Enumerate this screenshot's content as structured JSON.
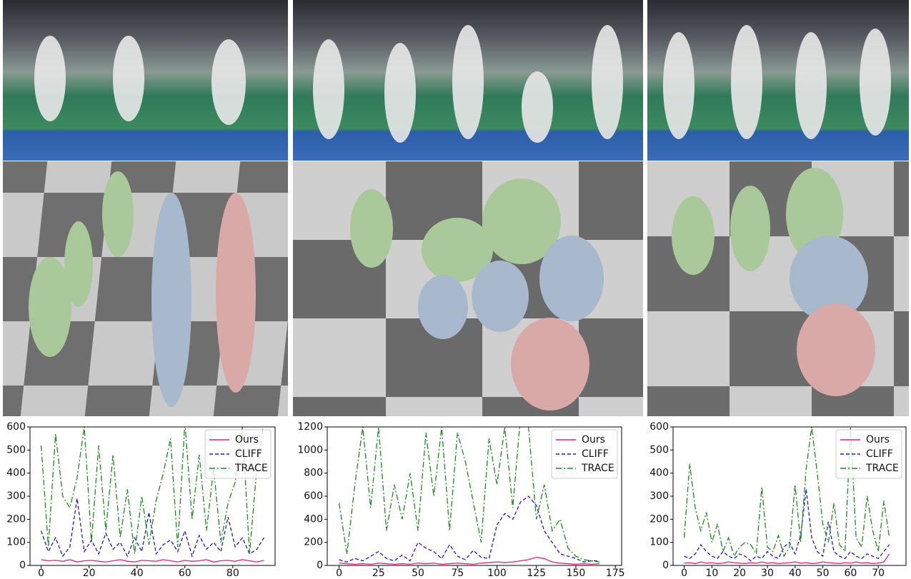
{
  "chart_data": [
    {
      "type": "line",
      "legend": "upper right",
      "x": [
        0,
        3,
        6,
        9,
        12,
        15,
        18,
        21,
        24,
        27,
        30,
        33,
        36,
        39,
        42,
        45,
        48,
        51,
        54,
        57,
        60,
        63,
        66,
        69,
        72,
        75,
        78,
        81,
        84,
        87,
        90,
        93
      ],
      "xlim": [
        -4.65,
        97.65
      ],
      "xticks": [
        0,
        20,
        40,
        60,
        80
      ],
      "ylim": [
        0,
        600
      ],
      "yticks": [
        0,
        100,
        200,
        300,
        400,
        500,
        600
      ],
      "series": [
        {
          "name": "Ours",
          "color": "#e0217b",
          "linestyle": "solid",
          "values": [
            25,
            20,
            22,
            18,
            25,
            15,
            20,
            22,
            18,
            15,
            20,
            25,
            18,
            15,
            22,
            20,
            18,
            25,
            20,
            15,
            22,
            18,
            20,
            25,
            15,
            20,
            22,
            18,
            25,
            20,
            15,
            22
          ]
        },
        {
          "name": "CLIFF",
          "color": "#1a1acc",
          "linestyle": "dashed",
          "values": [
            150,
            60,
            120,
            40,
            80,
            290,
            60,
            110,
            50,
            140,
            70,
            100,
            40,
            120,
            60,
            230,
            50,
            90,
            110,
            60,
            150,
            40,
            130,
            70,
            100,
            60,
            210,
            80,
            120,
            50,
            70,
            120
          ]
        },
        {
          "name": "TRACE",
          "color": "#1e8a1e",
          "linestyle": "dashdot",
          "values": [
            520,
            80,
            570,
            300,
            250,
            380,
            600,
            100,
            520,
            150,
            480,
            120,
            330,
            50,
            300,
            90,
            280,
            400,
            550,
            80,
            620,
            200,
            480,
            150,
            420,
            100,
            270,
            360,
            600,
            50,
            420,
            620
          ]
        }
      ]
    },
    {
      "type": "line",
      "legend": "upper right",
      "x": [
        0,
        5,
        10,
        15,
        20,
        25,
        30,
        35,
        40,
        45,
        50,
        55,
        60,
        65,
        70,
        75,
        80,
        85,
        90,
        95,
        100,
        105,
        110,
        115,
        120,
        125,
        130,
        135,
        140,
        145,
        150,
        155,
        160,
        165
      ],
      "xlim": [
        -7.5,
        179
      ],
      "xticks": [
        0,
        25,
        50,
        75,
        100,
        125,
        150,
        175
      ],
      "ylim": [
        0,
        1200
      ],
      "yticks": [
        0,
        200,
        400,
        600,
        800,
        1000,
        1200
      ],
      "series": [
        {
          "name": "Ours",
          "color": "#e0217b",
          "linestyle": "solid",
          "values": [
            20,
            15,
            10,
            15,
            10,
            20,
            15,
            10,
            15,
            10,
            20,
            15,
            20,
            10,
            15,
            20,
            15,
            10,
            20,
            25,
            30,
            25,
            30,
            40,
            50,
            70,
            60,
            30,
            20,
            15,
            10,
            15,
            10,
            15
          ]
        },
        {
          "name": "CLIFF",
          "color": "#1a1acc",
          "linestyle": "dashed",
          "values": [
            50,
            30,
            60,
            40,
            80,
            120,
            60,
            40,
            90,
            40,
            200,
            150,
            120,
            60,
            180,
            80,
            50,
            130,
            70,
            60,
            350,
            450,
            400,
            550,
            600,
            520,
            300,
            200,
            100,
            80,
            60,
            30,
            40,
            40
          ]
        },
        {
          "name": "TRACE",
          "color": "#1e8a1e",
          "linestyle": "dashdot",
          "values": [
            540,
            100,
            700,
            1200,
            500,
            1200,
            300,
            700,
            400,
            800,
            300,
            1150,
            600,
            1200,
            300,
            1150,
            900,
            550,
            200,
            1100,
            700,
            1200,
            500,
            1300,
            1200,
            400,
            700,
            300,
            400,
            150,
            80,
            50,
            40,
            30
          ]
        }
      ]
    },
    {
      "type": "line",
      "legend": "upper right",
      "x": [
        0,
        2,
        4,
        6,
        8,
        10,
        12,
        14,
        16,
        18,
        20,
        22,
        24,
        26,
        28,
        30,
        32,
        34,
        36,
        38,
        40,
        42,
        44,
        46,
        48,
        50,
        52,
        54,
        56,
        58,
        60,
        62,
        64,
        66,
        68,
        70,
        72,
        74
      ],
      "xlim": [
        -4,
        80
      ],
      "xticks": [
        0,
        10,
        20,
        30,
        40,
        50,
        60,
        70
      ],
      "ylim": [
        0,
        600
      ],
      "yticks": [
        0,
        100,
        200,
        300,
        400,
        500,
        600
      ],
      "series": [
        {
          "name": "Ours",
          "color": "#e0217b",
          "linestyle": "solid",
          "values": [
            10,
            12,
            8,
            15,
            10,
            12,
            8,
            10,
            15,
            12,
            10,
            8,
            12,
            10,
            15,
            10,
            12,
            8,
            10,
            12,
            15,
            10,
            12,
            8,
            10,
            15,
            12,
            10,
            8,
            12,
            10,
            15,
            10,
            12,
            8,
            10,
            15,
            50
          ]
        },
        {
          "name": "CLIFF",
          "color": "#1a1acc",
          "linestyle": "dashed",
          "values": [
            40,
            30,
            50,
            90,
            60,
            40,
            30,
            60,
            40,
            30,
            50,
            40,
            20,
            40,
            30,
            60,
            40,
            30,
            80,
            100,
            50,
            130,
            330,
            120,
            60,
            40,
            190,
            60,
            40,
            30,
            60,
            40,
            30,
            50,
            40,
            30,
            60,
            90
          ]
        },
        {
          "name": "TRACE",
          "color": "#1e8a1e",
          "linestyle": "dashdot",
          "values": [
            120,
            440,
            250,
            150,
            230,
            100,
            180,
            60,
            120,
            40,
            80,
            100,
            90,
            50,
            340,
            80,
            60,
            130,
            40,
            80,
            350,
            100,
            420,
            600,
            400,
            180,
            100,
            270,
            90,
            60,
            600,
            120,
            80,
            300,
            150,
            60,
            280,
            120
          ]
        }
      ]
    }
  ]
}
